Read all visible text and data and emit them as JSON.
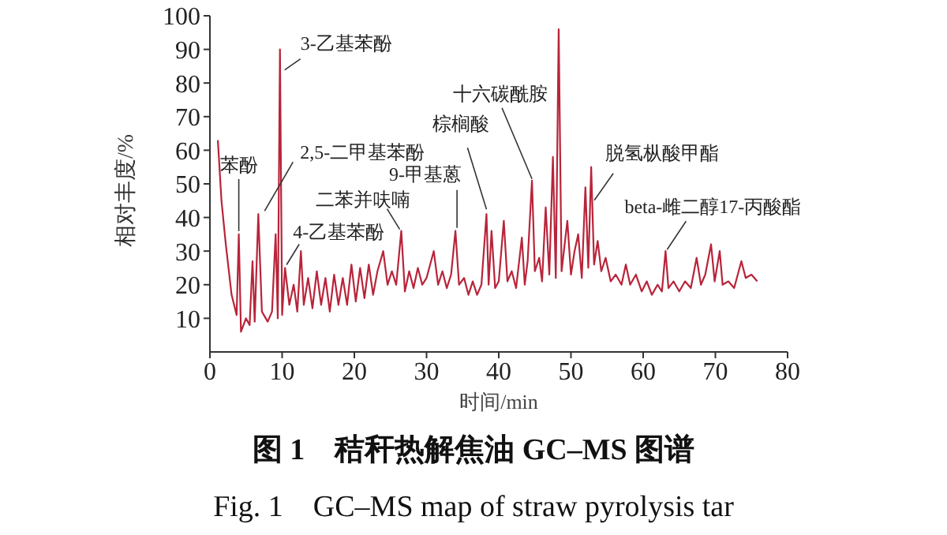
{
  "chart_data": {
    "type": "line",
    "title": "图 1　秸秆热解焦油 GC–MS 图谱",
    "subtitle": "Fig. 1　GC–MS map of straw pyrolysis tar",
    "xlabel": "时间/min",
    "ylabel": "相对丰度/%",
    "x": [
      1.1,
      1.6,
      2.2,
      3,
      3.7,
      4.0,
      4.3,
      5.0,
      5.5,
      5.9,
      6.2,
      6.7,
      7.2,
      8.0,
      8.6,
      9.1,
      9.4,
      9.7,
      10.0,
      10.4,
      11.0,
      11.6,
      12.1,
      12.6,
      13.0,
      13.6,
      14.2,
      14.8,
      15.4,
      16.0,
      16.6,
      17.2,
      17.8,
      18.4,
      19.0,
      19.6,
      20.2,
      20.8,
      21.4,
      22.0,
      22.6,
      23.2,
      24.0,
      24.6,
      25.2,
      25.8,
      26.5,
      27.0,
      27.6,
      28.2,
      28.8,
      29.4,
      30.0,
      31.0,
      31.6,
      32.2,
      32.8,
      33.4,
      34.0,
      34.5,
      35.2,
      35.8,
      36.4,
      37.0,
      37.6,
      38.3,
      38.6,
      39.0,
      39.5,
      40.0,
      40.7,
      41.2,
      41.8,
      42.4,
      43.2,
      43.6,
      44.0,
      44.6,
      45.0,
      45.6,
      46.0,
      46.5,
      47.0,
      47.5,
      47.9,
      48.3,
      48.7,
      49.5,
      50.0,
      50.5,
      51.0,
      51.5,
      52.0,
      52.4,
      52.8,
      53.2,
      53.7,
      54.2,
      54.8,
      55.5,
      56.2,
      57.0,
      57.6,
      58.2,
      59.0,
      59.8,
      60.5,
      61.2,
      62.0,
      62.6,
      63.1,
      63.5,
      64.2,
      65.0,
      65.8,
      66.6,
      67.4,
      68.0,
      68.6,
      69.4,
      69.9,
      70.6,
      71.0,
      71.8,
      72.6,
      73.6,
      74.2,
      75.0,
      75.8
    ],
    "series": [
      {
        "color": "#b8243a",
        "values": [
          63,
          45,
          32,
          17,
          11,
          35,
          6,
          10,
          8,
          27,
          9,
          41,
          12,
          9,
          12,
          35,
          10,
          90,
          11,
          25,
          14,
          20,
          12,
          30,
          14,
          22,
          13,
          24,
          14,
          22,
          12,
          23,
          14,
          22,
          14,
          26,
          15,
          25,
          16,
          26,
          17,
          24,
          30,
          20,
          24,
          20,
          36,
          18,
          24,
          19,
          25,
          20,
          22,
          30,
          20,
          24,
          19,
          23,
          36,
          20,
          22,
          17,
          21,
          17,
          20,
          41,
          20,
          36,
          19,
          21,
          39,
          21,
          24,
          19,
          34,
          20,
          27,
          51,
          24,
          28,
          21,
          43,
          23,
          58,
          22,
          96,
          24,
          39,
          23,
          30,
          35,
          22,
          49,
          25,
          55,
          26,
          33,
          24,
          28,
          21,
          23,
          20,
          26,
          20,
          23,
          18,
          21,
          17,
          20,
          18,
          30,
          19,
          21,
          18,
          21,
          19,
          28,
          20,
          23,
          32,
          21,
          30,
          20,
          21,
          19,
          27,
          22,
          23,
          21
        ]
      }
    ],
    "xlim": [
      0,
      80
    ],
    "xticks": [
      0,
      10,
      20,
      30,
      40,
      50,
      60,
      70,
      80
    ],
    "ylim": [
      0,
      100
    ],
    "yticks": [
      10,
      20,
      30,
      40,
      50,
      60,
      70,
      80,
      90,
      100
    ],
    "grid": false,
    "legend": false,
    "marker": "none",
    "line_style": "solid",
    "annotations": [
      {
        "text": "苯酚",
        "x": 4.0,
        "y": 35
      },
      {
        "text": "3-乙基苯酚",
        "x": 9.7,
        "y": 90
      },
      {
        "text": "2,5-二甲基苯酚",
        "x": 6.7,
        "y": 41
      },
      {
        "text": "4-乙基苯酚",
        "x": 10.4,
        "y": 25
      },
      {
        "text": "二苯并呋喃",
        "x": 26.5,
        "y": 36
      },
      {
        "text": "9-甲基蒽",
        "x": 34.0,
        "y": 36
      },
      {
        "text": "棕榈酸",
        "x": 38.3,
        "y": 41
      },
      {
        "text": "十六碳酰胺",
        "x": 44.6,
        "y": 51
      },
      {
        "text": "脱氢枞酸甲酯",
        "x": 52.8,
        "y": 55
      },
      {
        "text": "beta-雌二醇17-丙酸酯",
        "x": 63.1,
        "y": 30
      }
    ]
  }
}
